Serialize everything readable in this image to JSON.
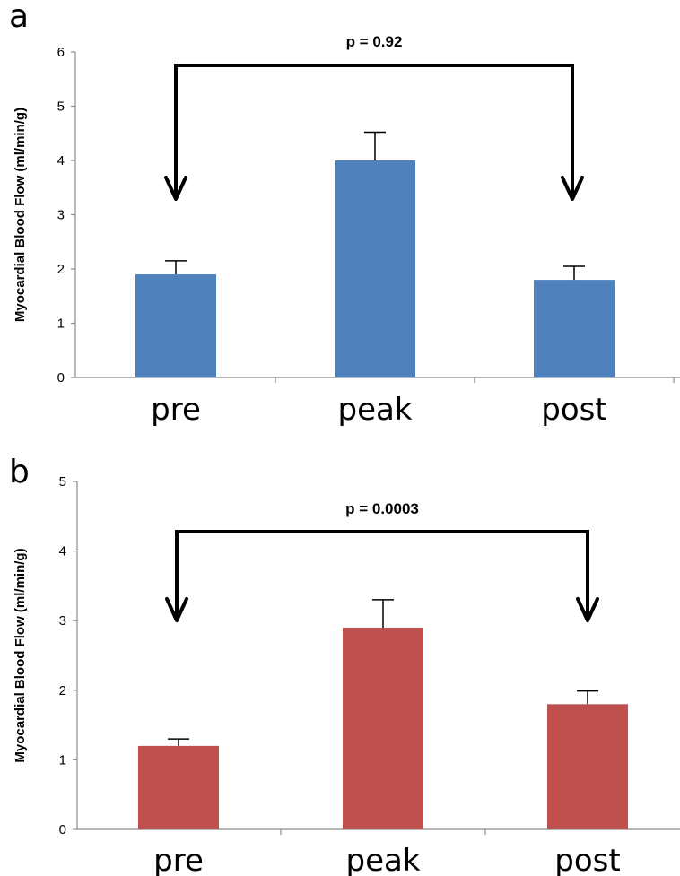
{
  "chart_data": [
    {
      "type": "bar",
      "panel_label": "a",
      "categories": [
        "pre",
        "peak",
        "post"
      ],
      "values": [
        1.9,
        4.0,
        1.8
      ],
      "errors": [
        0.25,
        0.52,
        0.25
      ],
      "ylabel": "Myocardial Blood Flow (ml/min/g)",
      "xlabel": "",
      "title": "",
      "ylim": [
        0,
        6
      ],
      "yticks": [
        "0",
        "1",
        "2",
        "3",
        "4",
        "5",
        "6"
      ],
      "bar_color": "#4F81BD",
      "grid": false,
      "annotation": {
        "text": "p = 0.92",
        "from": "pre",
        "to": "post"
      }
    },
    {
      "type": "bar",
      "panel_label": "b",
      "categories": [
        "pre",
        "peak",
        "post"
      ],
      "values": [
        1.2,
        2.9,
        1.8
      ],
      "errors": [
        0.1,
        0.4,
        0.19
      ],
      "ylabel": "Myocardial Blood Flow (ml/min/g)",
      "xlabel": "",
      "title": "",
      "ylim": [
        0,
        5
      ],
      "yticks": [
        "0",
        "1",
        "2",
        "3",
        "4",
        "5"
      ],
      "bar_color": "#C0504D",
      "grid": false,
      "annotation": {
        "text": "p = 0.0003",
        "from": "pre",
        "to": "post"
      }
    }
  ]
}
